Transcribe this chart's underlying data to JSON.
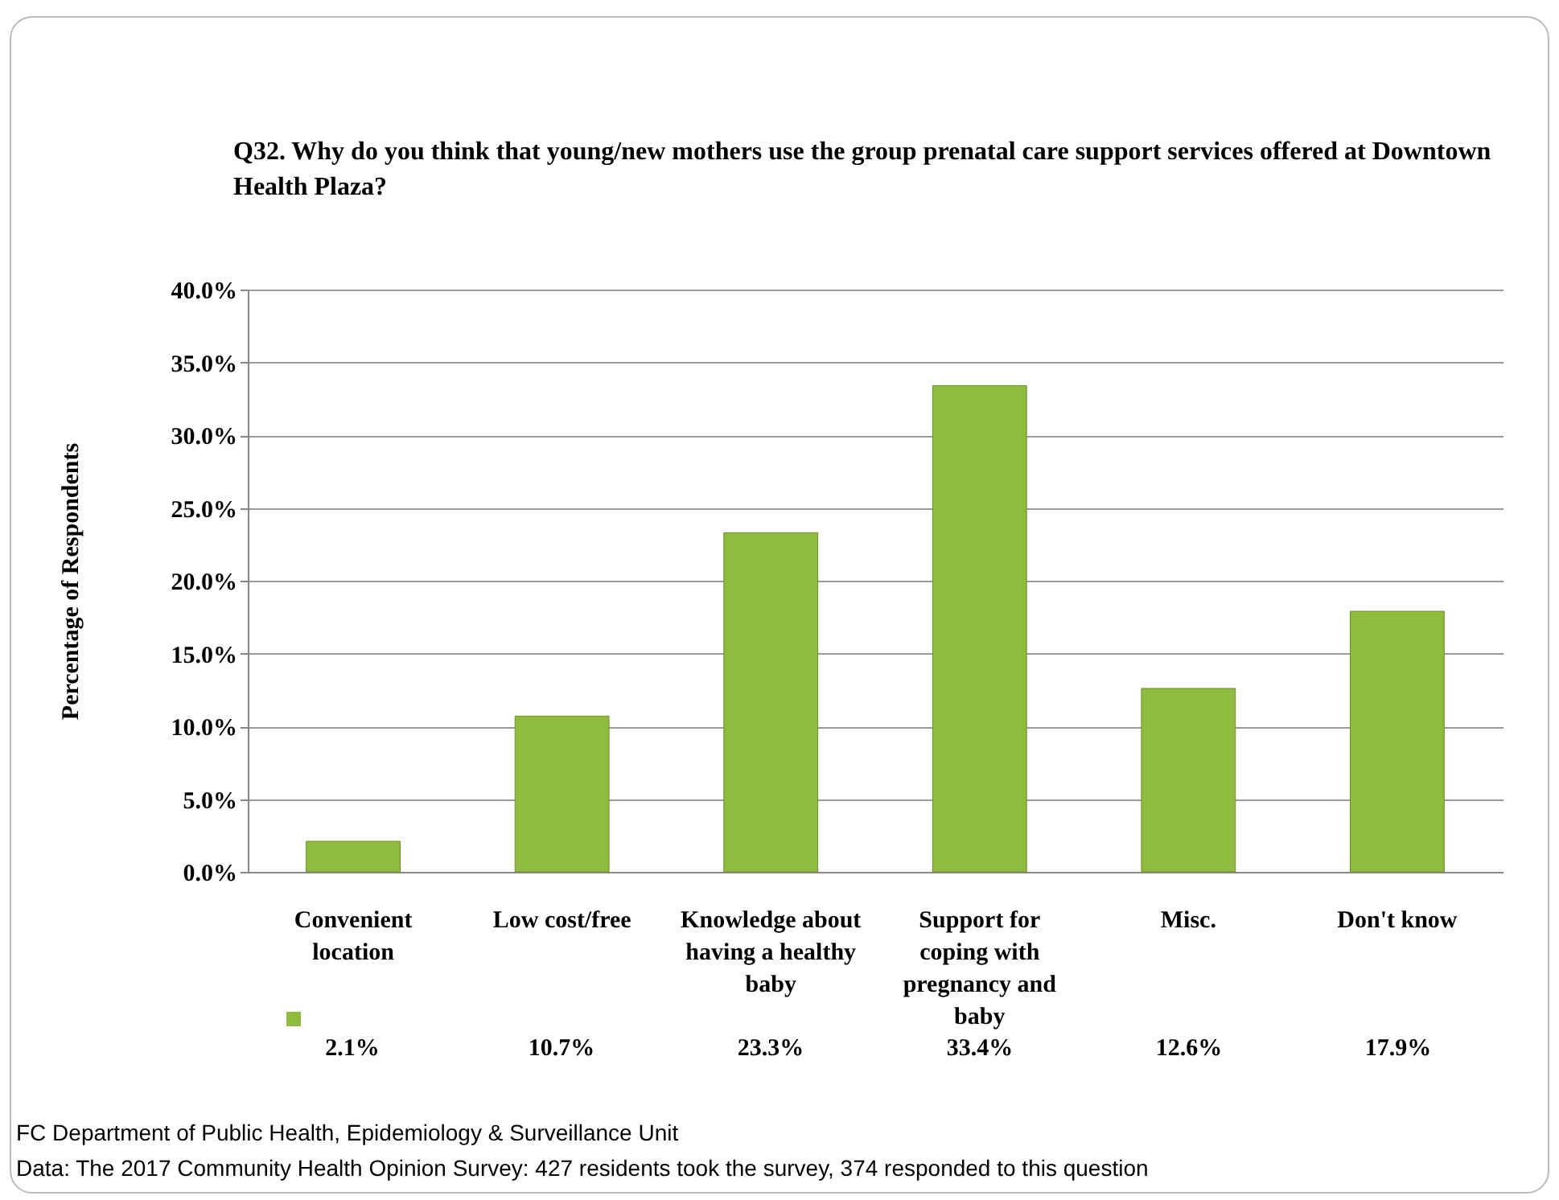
{
  "chart_data": {
    "type": "bar",
    "title": "Q32. Why do you think that young/new mothers use the group prenatal care support services offered at Downtown Health Plaza?",
    "ylabel": "Percentage of Respondents",
    "categories": [
      "Convenient location",
      "Low cost/free",
      "Knowledge about having a healthy baby",
      "Support for coping with pregnancy and baby",
      "Misc.",
      "Don't know"
    ],
    "values": [
      2.1,
      10.7,
      23.3,
      33.4,
      12.6,
      17.9
    ],
    "value_labels": [
      "2.1%",
      "10.7%",
      "23.3%",
      "33.4%",
      "12.6%",
      "17.9%"
    ],
    "color": "#8fbc3f",
    "ylim": [
      0,
      40
    ],
    "yticks": [
      {
        "value": 0,
        "label": "0.0%"
      },
      {
        "value": 5,
        "label": "5.0%"
      },
      {
        "value": 10,
        "label": "10.0%"
      },
      {
        "value": 15,
        "label": "15.0%"
      },
      {
        "value": 20,
        "label": "20.0%"
      },
      {
        "value": 25,
        "label": "25.0%"
      },
      {
        "value": 30,
        "label": "30.0%"
      },
      {
        "value": 35,
        "label": "35.0%"
      },
      {
        "value": 40,
        "label": "40.0%"
      }
    ],
    "grid": "y",
    "annotations": [
      "FC Department of Public Health, Epidemiology & Surveillance Unit",
      "Data: The 2017  Community Health Opinion Survey: 427 residents took the survey, 374 responded to this question"
    ]
  }
}
